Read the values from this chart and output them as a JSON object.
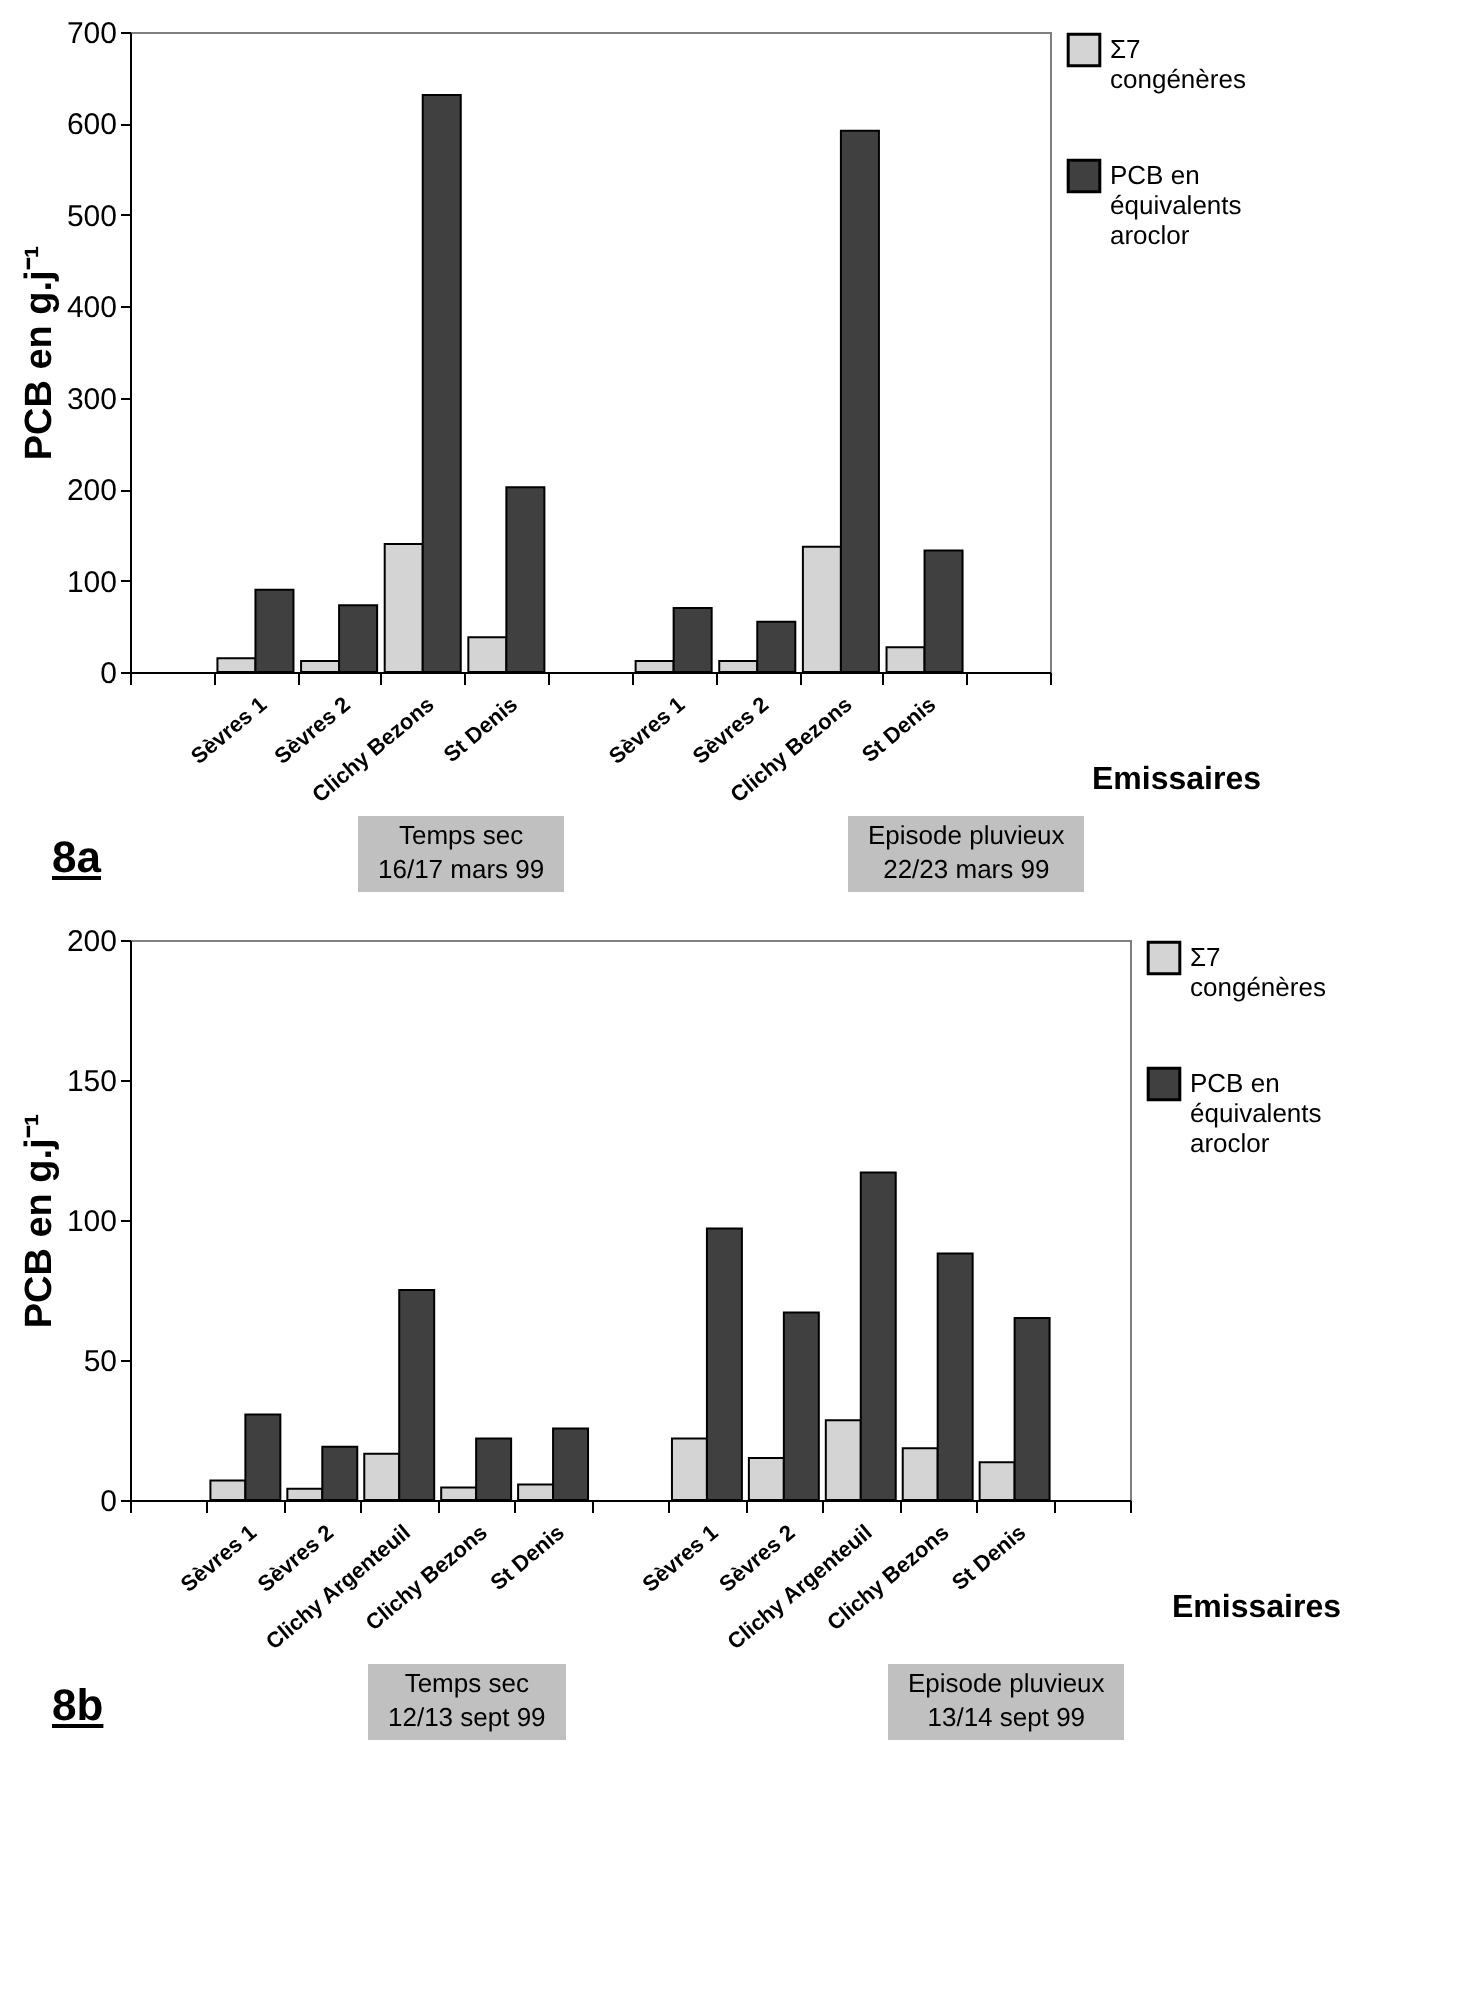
{
  "chart_data": [
    {
      "type": "bar",
      "title": "8a",
      "xlabel": "Emissaires",
      "ylabel": "PCB en g.j⁻¹",
      "categories": [
        null,
        "Sèvres 1",
        "Sèvres 2",
        "Clichy Bezons",
        "St Denis",
        null,
        "Sèvres 1",
        "Sèvres 2",
        "Clichy Bezons",
        "St Denis",
        null
      ],
      "series": [
        {
          "name": "Σ7 congénères",
          "color": "#d4d4d4",
          "values": [
            null,
            15,
            12,
            140,
            38,
            null,
            12,
            12,
            137,
            27,
            null
          ]
        },
        {
          "name": "PCB en équivalents aroclor",
          "color": "#404040",
          "values": [
            null,
            90,
            73,
            631,
            202,
            null,
            70,
            55,
            592,
            133,
            null
          ]
        }
      ],
      "ylim": [
        0,
        700
      ],
      "yticks": [
        0,
        100,
        200,
        300,
        400,
        500,
        600,
        700
      ],
      "grid": false,
      "legend": "right",
      "annotations": [
        "Temps sec\n16/17 mars 99",
        "Episode pluvieux\n22/23 mars 99"
      ]
    },
    {
      "type": "bar",
      "title": "8b",
      "xlabel": "Emissaires",
      "ylabel": "PCB en g.j⁻¹",
      "categories": [
        null,
        "Sèvres 1",
        "Sèvres 2",
        "Clichy Argenteuil",
        "Clichy Bezons",
        "St Denis",
        null,
        "Sèvres 1",
        "Sèvres 2",
        "Clichy Argenteuil",
        "Clichy Bezons",
        "St Denis",
        null
      ],
      "series": [
        {
          "name": "Σ7 congénères",
          "color": "#d4d4d4",
          "values": [
            null,
            7,
            4,
            16.5,
            4.5,
            5.5,
            null,
            22,
            15,
            28.5,
            18.5,
            13.5,
            null
          ]
        },
        {
          "name": "PCB en équivalents aroclor",
          "color": "#404040",
          "values": [
            null,
            30.5,
            19,
            75,
            22,
            25.5,
            null,
            97,
            67,
            117,
            88,
            65,
            null
          ]
        }
      ],
      "ylim": [
        0,
        200
      ],
      "yticks": [
        0,
        50,
        100,
        150,
        200
      ],
      "grid": false,
      "legend": "right",
      "annotations": [
        "Temps sec\n12/13 sept 99",
        "Episode pluvieux\n13/14 sept 99"
      ]
    }
  ]
}
